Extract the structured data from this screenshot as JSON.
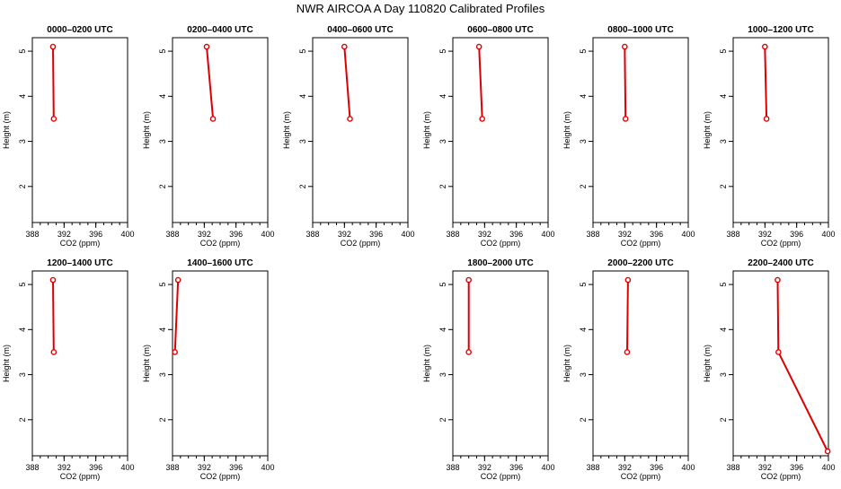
{
  "title": "NWR AIRCOA A  Day 110820  Calibrated Profiles",
  "colors": {
    "series": "#dd0000",
    "axis": "#000000",
    "background": "#ffffff"
  },
  "chart_data": [
    {
      "type": "line",
      "title": "0000–0200 UTC",
      "xlabel": "CO2 (ppm)",
      "ylabel": "Height (m)",
      "xlim": [
        388,
        400
      ],
      "ylim": [
        1.2,
        5.3
      ],
      "xticks": [
        "388",
        "392",
        "396",
        "400"
      ],
      "yticks": [
        "2",
        "3",
        "4",
        "5"
      ],
      "points": [
        {
          "x": 390.6,
          "y": 5.1
        },
        {
          "x": 390.7,
          "y": 3.5
        }
      ]
    },
    {
      "type": "line",
      "title": "0200–0400 UTC",
      "xlabel": "CO2 (ppm)",
      "ylabel": "Height (m)",
      "xlim": [
        388,
        400
      ],
      "ylim": [
        1.2,
        5.3
      ],
      "xticks": [
        "388",
        "392",
        "396",
        "400"
      ],
      "yticks": [
        "2",
        "3",
        "4",
        "5"
      ],
      "points": [
        {
          "x": 392.3,
          "y": 5.1
        },
        {
          "x": 393.1,
          "y": 3.5
        }
      ]
    },
    {
      "type": "line",
      "title": "0400–0600 UTC",
      "xlabel": "CO2 (ppm)",
      "ylabel": "Height (m)",
      "xlim": [
        388,
        400
      ],
      "ylim": [
        1.2,
        5.3
      ],
      "xticks": [
        "388",
        "392",
        "396",
        "400"
      ],
      "yticks": [
        "2",
        "3",
        "4",
        "5"
      ],
      "points": [
        {
          "x": 392.0,
          "y": 5.1
        },
        {
          "x": 392.7,
          "y": 3.5
        }
      ]
    },
    {
      "type": "line",
      "title": "0600–0800 UTC",
      "xlabel": "CO2 (ppm)",
      "ylabel": "Height (m)",
      "xlim": [
        388,
        400
      ],
      "ylim": [
        1.2,
        5.3
      ],
      "xticks": [
        "388",
        "392",
        "396",
        "400"
      ],
      "yticks": [
        "2",
        "3",
        "4",
        "5"
      ],
      "points": [
        {
          "x": 391.3,
          "y": 5.1
        },
        {
          "x": 391.7,
          "y": 3.5
        }
      ]
    },
    {
      "type": "line",
      "title": "0800–1000 UTC",
      "xlabel": "CO2 (ppm)",
      "ylabel": "Height (m)",
      "xlim": [
        388,
        400
      ],
      "ylim": [
        1.2,
        5.3
      ],
      "xticks": [
        "388",
        "392",
        "396",
        "400"
      ],
      "yticks": [
        "2",
        "3",
        "4",
        "5"
      ],
      "points": [
        {
          "x": 392.0,
          "y": 5.1
        },
        {
          "x": 392.1,
          "y": 3.5
        }
      ]
    },
    {
      "type": "line",
      "title": "1000–1200 UTC",
      "xlabel": "CO2 (ppm)",
      "ylabel": "Height (m)",
      "xlim": [
        388,
        400
      ],
      "ylim": [
        1.2,
        5.3
      ],
      "xticks": [
        "388",
        "392",
        "396",
        "400"
      ],
      "yticks": [
        "2",
        "3",
        "4",
        "5"
      ],
      "points": [
        {
          "x": 392.0,
          "y": 5.1
        },
        {
          "x": 392.2,
          "y": 3.5
        }
      ]
    },
    {
      "type": "line",
      "title": "1200–1400 UTC",
      "xlabel": "CO2 (ppm)",
      "ylabel": "Height (m)",
      "xlim": [
        388,
        400
      ],
      "ylim": [
        1.2,
        5.3
      ],
      "xticks": [
        "388",
        "392",
        "396",
        "400"
      ],
      "yticks": [
        "2",
        "3",
        "4",
        "5"
      ],
      "points": [
        {
          "x": 390.6,
          "y": 5.1
        },
        {
          "x": 390.7,
          "y": 3.5
        }
      ]
    },
    {
      "type": "line",
      "title": "1400–1600 UTC",
      "xlabel": "CO2 (ppm)",
      "ylabel": "Height (m)",
      "xlim": [
        388,
        400
      ],
      "ylim": [
        1.2,
        5.3
      ],
      "xticks": [
        "388",
        "392",
        "396",
        "400"
      ],
      "yticks": [
        "2",
        "3",
        "4",
        "5"
      ],
      "points": [
        {
          "x": 388.7,
          "y": 5.1
        },
        {
          "x": 388.3,
          "y": 3.5
        }
      ]
    },
    null,
    {
      "type": "line",
      "title": "1800–2000 UTC",
      "xlabel": "CO2 (ppm)",
      "ylabel": "Height (m)",
      "xlim": [
        388,
        400
      ],
      "ylim": [
        1.2,
        5.3
      ],
      "xticks": [
        "388",
        "392",
        "396",
        "400"
      ],
      "yticks": [
        "2",
        "3",
        "4",
        "5"
      ],
      "points": [
        {
          "x": 390.0,
          "y": 5.1
        },
        {
          "x": 390.0,
          "y": 3.5
        }
      ]
    },
    {
      "type": "line",
      "title": "2000–2200 UTC",
      "xlabel": "CO2 (ppm)",
      "ylabel": "Height (m)",
      "xlim": [
        388,
        400
      ],
      "ylim": [
        1.2,
        5.3
      ],
      "xticks": [
        "388",
        "392",
        "396",
        "400"
      ],
      "yticks": [
        "2",
        "3",
        "4",
        "5"
      ],
      "points": [
        {
          "x": 392.4,
          "y": 5.1
        },
        {
          "x": 392.3,
          "y": 3.5
        }
      ]
    },
    {
      "type": "line",
      "title": "2200–2400 UTC",
      "xlabel": "CO2 (ppm)",
      "ylabel": "Height (m)",
      "xlim": [
        388,
        400
      ],
      "ylim": [
        1.2,
        5.3
      ],
      "xticks": [
        "388",
        "392",
        "396",
        "400"
      ],
      "yticks": [
        "2",
        "3",
        "4",
        "5"
      ],
      "points": [
        {
          "x": 393.6,
          "y": 5.1
        },
        {
          "x": 393.7,
          "y": 3.5
        },
        {
          "x": 399.9,
          "y": 1.3
        }
      ]
    }
  ]
}
